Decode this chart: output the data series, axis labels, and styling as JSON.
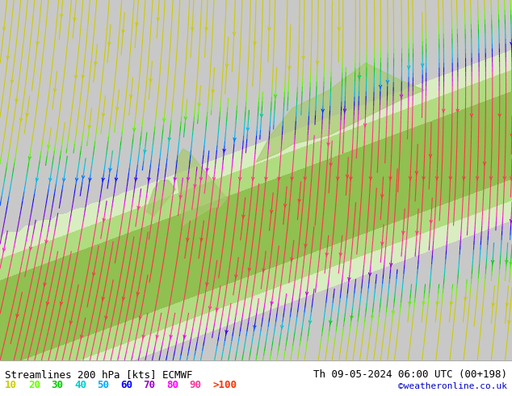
{
  "title_left": "Streamlines 200 hPa [kts] ECMWF",
  "title_right": "Th 09-05-2024 06:00 UTC (00+198)",
  "credit": "©weatheronline.co.uk",
  "legend_labels": [
    "10",
    "20",
    "30",
    "40",
    "50",
    "60",
    "70",
    "80",
    "90",
    ">100"
  ],
  "legend_colors": [
    "#ffff00",
    "#00ff00",
    "#00cc00",
    "#00cccc",
    "#0099ff",
    "#0000ff",
    "#9900cc",
    "#ff00ff",
    "#ff0066",
    "#ff0000"
  ],
  "background_color": "#d3d3d3",
  "map_bg_color": "#c8c8c8",
  "land_color": "#c8c8c8",
  "fig_width": 6.34,
  "fig_height": 4.9,
  "dpi": 100,
  "streamline_colors_by_speed": {
    "10": "#00cccc",
    "20": "#00cccc",
    "30": "#00cccc",
    "40": "#0066ff",
    "50": "#0000cc",
    "60": "#9900cc",
    "70": "#cc00cc",
    "80": "#ff00ff",
    "90": "#ff0066",
    "100": "#ff0000"
  },
  "legend_color_10": "#cccc00",
  "legend_color_20": "#66ff00",
  "legend_color_30": "#00cc00",
  "legend_color_40": "#00cccc",
  "legend_color_50": "#00aaff",
  "legend_color_60": "#0000ff",
  "legend_color_70": "#9900cc",
  "legend_color_80": "#ff00ff",
  "legend_color_90": "#ff3399",
  "legend_color_100": "#ff3300",
  "bottom_bar_color": "#ffffff",
  "title_font_size": 9,
  "legend_font_size": 9,
  "credit_font_size": 8,
  "credit_color": "#0000cc"
}
